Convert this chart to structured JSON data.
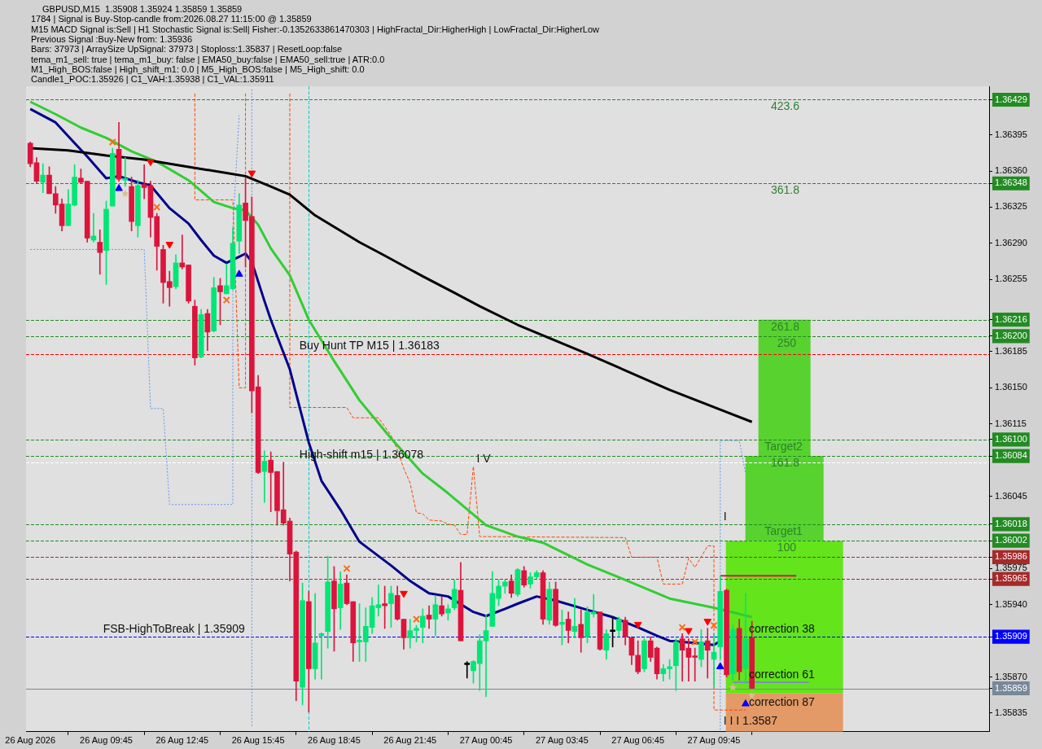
{
  "chart_data": {
    "type": "candlestick",
    "x": [
      "2026-08-26T06:45",
      "2026-08-26T07:00",
      "2026-08-26T07:15",
      "2026-08-26T07:30",
      "2026-08-26T07:45",
      "2026-08-26T08:00",
      "2026-08-26T08:15",
      "2026-08-26T08:30",
      "2026-08-26T08:45",
      "2026-08-26T09:00",
      "2026-08-26T09:15",
      "2026-08-26T09:30",
      "2026-08-26T09:45",
      "2026-08-26T10:00",
      "2026-08-26T10:15",
      "2026-08-26T10:30",
      "2026-08-26T10:45",
      "2026-08-26T11:00",
      "2026-08-26T11:15",
      "2026-08-26T11:30",
      "2026-08-26T11:45",
      "2026-08-26T12:00",
      "2026-08-26T12:15",
      "2026-08-26T12:30",
      "2026-08-26T12:45",
      "2026-08-26T13:00",
      "2026-08-26T13:15",
      "2026-08-26T13:30",
      "2026-08-26T13:45",
      "2026-08-26T14:00",
      "2026-08-26T14:15",
      "2026-08-26T14:30",
      "2026-08-26T14:45",
      "2026-08-26T15:00",
      "2026-08-26T15:15",
      "2026-08-26T15:30",
      "2026-08-26T15:45",
      "2026-08-26T16:00",
      "2026-08-26T16:15",
      "2026-08-26T16:30",
      "2026-08-26T16:45",
      "2026-08-26T17:00",
      "2026-08-26T17:15",
      "2026-08-26T17:30",
      "2026-08-26T17:45",
      "2026-08-26T18:00",
      "2026-08-26T18:15",
      "2026-08-26T18:30",
      "2026-08-26T18:45",
      "2026-08-26T19:00",
      "2026-08-26T19:15",
      "2026-08-26T19:30",
      "2026-08-26T19:45",
      "2026-08-26T20:00",
      "2026-08-26T20:15",
      "2026-08-26T20:30",
      "2026-08-26T20:45",
      "2026-08-26T21:00",
      "2026-08-26T21:15",
      "2026-08-26T21:30",
      "2026-08-26T21:45",
      "2026-08-26T22:00",
      "2026-08-26T22:15",
      "2026-08-26T22:30",
      "2026-08-26T22:45",
      "2026-08-26T23:00",
      "2026-08-26T23:15",
      "2026-08-26T23:30",
      "2026-08-26T23:45",
      "2026-08-27T00:00",
      "2026-08-27T00:15",
      "2026-08-27T00:30",
      "2026-08-27T00:45",
      "2026-08-27T01:00",
      "2026-08-27T01:15",
      "2026-08-27T01:30",
      "2026-08-27T01:45",
      "2026-08-27T02:00",
      "2026-08-27T02:15",
      "2026-08-27T02:30",
      "2026-08-27T02:45",
      "2026-08-27T03:00",
      "2026-08-27T03:15",
      "2026-08-27T03:30",
      "2026-08-27T03:45",
      "2026-08-27T04:00",
      "2026-08-27T04:15",
      "2026-08-27T04:30",
      "2026-08-27T04:45",
      "2026-08-27T05:00",
      "2026-08-27T05:15",
      "2026-08-27T05:30",
      "2026-08-27T05:45",
      "2026-08-27T06:00",
      "2026-08-27T06:15",
      "2026-08-27T06:30",
      "2026-08-27T06:45",
      "2026-08-27T07:00",
      "2026-08-27T07:15",
      "2026-08-27T07:30",
      "2026-08-27T07:45",
      "2026-08-27T08:00",
      "2026-08-27T08:15",
      "2026-08-27T08:30",
      "2026-08-27T08:45",
      "2026-08-27T09:00",
      "2026-08-27T09:15",
      "2026-08-27T09:30",
      "2026-08-27T09:45",
      "2026-08-27T10:00",
      "2026-08-27T10:15",
      "2026-08-27T10:30",
      "2026-08-27T10:45",
      "2026-08-27T11:00",
      "2026-08-27T11:15"
    ],
    "ohlc": [
      [
        1.36387,
        1.36388,
        1.36364,
        1.36367
      ],
      [
        1.36368,
        1.36373,
        1.36348,
        1.3635
      ],
      [
        1.36349,
        1.36367,
        1.36339,
        1.36356
      ],
      [
        1.36356,
        1.36364,
        1.36338,
        1.36338
      ],
      [
        1.36338,
        1.36345,
        1.36319,
        1.36327
      ],
      [
        1.36328,
        1.36333,
        1.36302,
        1.36307
      ],
      [
        1.36307,
        1.36342,
        1.36307,
        1.36328
      ],
      [
        1.36327,
        1.36366,
        1.36326,
        1.36354
      ],
      [
        1.36353,
        1.36362,
        1.36348,
        1.36349
      ],
      [
        1.3635,
        1.3635,
        1.36291,
        1.36295
      ],
      [
        1.36293,
        1.36319,
        1.36291,
        1.36297
      ],
      [
        1.36291,
        1.36303,
        1.3626,
        1.36281
      ],
      [
        1.36283,
        1.36331,
        1.3625,
        1.36323
      ],
      [
        1.36326,
        1.36382,
        1.36326,
        1.36377
      ],
      [
        1.36381,
        1.36407,
        1.3635,
        1.36352
      ],
      [
        1.36351,
        1.36373,
        1.36345,
        1.36352
      ],
      [
        1.36345,
        1.36354,
        1.36302,
        1.36311
      ],
      [
        1.36307,
        1.36351,
        1.36296,
        1.36346
      ],
      [
        1.36347,
        1.36366,
        1.36333,
        1.36344
      ],
      [
        1.36346,
        1.3635,
        1.36296,
        1.36315
      ],
      [
        1.36316,
        1.36319,
        1.36264,
        1.36287
      ],
      [
        1.36284,
        1.36288,
        1.36232,
        1.36252
      ],
      [
        1.36253,
        1.36263,
        1.36229,
        1.36247
      ],
      [
        1.36248,
        1.36279,
        1.36246,
        1.36271
      ],
      [
        1.36271,
        1.36298,
        1.36265,
        1.36267
      ],
      [
        1.36269,
        1.36269,
        1.36232,
        1.36234
      ],
      [
        1.36229,
        1.36235,
        1.36172,
        1.36179
      ],
      [
        1.3618,
        1.36226,
        1.36179,
        1.36221
      ],
      [
        1.36222,
        1.36226,
        1.36186,
        1.36204
      ],
      [
        1.36205,
        1.36257,
        1.36204,
        1.36247
      ],
      [
        1.36249,
        1.36256,
        1.36211,
        1.36243
      ],
      [
        1.36241,
        1.3627,
        1.36241,
        1.36249
      ],
      [
        1.36246,
        1.36305,
        1.36245,
        1.3629
      ],
      [
        1.36292,
        1.36338,
        1.3628,
        1.36327
      ],
      [
        1.36329,
        1.36354,
        1.36267,
        1.36312
      ],
      [
        1.36316,
        1.36335,
        1.36126,
        1.36147
      ],
      [
        1.36151,
        1.36162,
        1.36067,
        1.36068
      ],
      [
        1.36069,
        1.36089,
        1.36039,
        1.36079
      ],
      [
        1.3608,
        1.36088,
        1.3603,
        1.36068
      ],
      [
        1.36069,
        1.36069,
        1.36017,
        1.36031
      ],
      [
        1.36032,
        1.36078,
        1.36017,
        1.36019
      ],
      [
        1.36021,
        1.36024,
        1.35963,
        1.35989
      ],
      [
        1.35991,
        1.35992,
        1.35847,
        1.35866
      ],
      [
        1.3586,
        1.35961,
        1.35843,
        1.35944
      ],
      [
        1.35943,
        1.35953,
        1.35836,
        1.35878
      ],
      [
        1.35878,
        1.35951,
        1.35868,
        1.35903
      ],
      [
        1.3591,
        1.35913,
        1.35868,
        1.35912
      ],
      [
        1.35914,
        1.35987,
        1.35898,
        1.35962
      ],
      [
        1.35963,
        1.35977,
        1.35895,
        1.35936
      ],
      [
        1.35937,
        1.35972,
        1.35916,
        1.3596
      ],
      [
        1.35961,
        1.35969,
        1.3594,
        1.35941
      ],
      [
        1.35943,
        1.35943,
        1.35885,
        1.35903
      ],
      [
        1.35904,
        1.35941,
        1.35885,
        1.35905
      ],
      [
        1.35904,
        1.35937,
        1.35885,
        1.35919
      ],
      [
        1.35918,
        1.35947,
        1.35912,
        1.35939
      ],
      [
        1.35937,
        1.35959,
        1.35929,
        1.3594
      ],
      [
        1.35941,
        1.35958,
        1.35917,
        1.35939
      ],
      [
        1.35941,
        1.35958,
        1.35918,
        1.35951
      ],
      [
        1.35949,
        1.35958,
        1.35925,
        1.35926
      ],
      [
        1.35926,
        1.35926,
        1.35897,
        1.35908
      ],
      [
        1.35908,
        1.35926,
        1.35898,
        1.35915
      ],
      [
        1.35915,
        1.3592,
        1.35904,
        1.35917
      ],
      [
        1.35918,
        1.35936,
        1.35903,
        1.35929
      ],
      [
        1.3593,
        1.35939,
        1.35917,
        1.35926
      ],
      [
        1.35926,
        1.35949,
        1.3591,
        1.3594
      ],
      [
        1.35939,
        1.35948,
        1.35929,
        1.35931
      ],
      [
        1.35932,
        1.3594,
        1.35925,
        1.35936
      ],
      [
        1.35937,
        1.35964,
        1.35935,
        1.35955
      ],
      [
        1.35954,
        1.35981,
        1.35905,
        1.35905
      ],
      [
        1.35882,
        1.35885,
        1.35869,
        1.35882
      ],
      [
        1.35876,
        1.35886,
        1.35864,
        1.35885
      ],
      [
        1.35883,
        1.35911,
        1.35857,
        1.35905
      ],
      [
        1.35905,
        1.3593,
        1.35851,
        1.35915
      ],
      [
        1.35919,
        1.35972,
        1.35919,
        1.35951
      ],
      [
        1.35946,
        1.35964,
        1.35939,
        1.35958
      ],
      [
        1.35958,
        1.35964,
        1.35951,
        1.35962
      ],
      [
        1.35963,
        1.35969,
        1.35947,
        1.35951
      ],
      [
        1.3595,
        1.35975,
        1.35948,
        1.35974
      ],
      [
        1.35973,
        1.35977,
        1.35957,
        1.35959
      ],
      [
        1.3596,
        1.35971,
        1.35956,
        1.35967
      ],
      [
        1.35967,
        1.35973,
        1.35965,
        1.35971
      ],
      [
        1.35971,
        1.35973,
        1.35921,
        1.35926
      ],
      [
        1.35925,
        1.35962,
        1.35921,
        1.35955
      ],
      [
        1.35955,
        1.35962,
        1.35919,
        1.3592
      ],
      [
        1.35921,
        1.35935,
        1.35901,
        1.35923
      ],
      [
        1.35926,
        1.35933,
        1.35903,
        1.35915
      ],
      [
        1.35914,
        1.35946,
        1.35908,
        1.35919
      ],
      [
        1.35921,
        1.35935,
        1.35894,
        1.35908
      ],
      [
        1.35909,
        1.35938,
        1.35903,
        1.35933
      ],
      [
        1.35931,
        1.3595,
        1.35928,
        1.35933
      ],
      [
        1.35933,
        1.35933,
        1.35896,
        1.35897
      ],
      [
        1.35896,
        1.35916,
        1.35887,
        1.35912
      ],
      [
        1.35914,
        1.35928,
        1.35899,
        1.35914
      ],
      [
        1.35915,
        1.35928,
        1.35909,
        1.35926
      ],
      [
        1.35925,
        1.35928,
        1.35901,
        1.35909
      ],
      [
        1.35908,
        1.35909,
        1.35882,
        1.35891
      ],
      [
        1.35891,
        1.35905,
        1.35873,
        1.35875
      ],
      [
        1.35878,
        1.35907,
        1.35875,
        1.35905
      ],
      [
        1.35905,
        1.35909,
        1.35885,
        1.35889
      ],
      [
        1.35898,
        1.35899,
        1.35868,
        1.35873
      ],
      [
        1.35873,
        1.35882,
        1.35866,
        1.35878
      ],
      [
        1.35878,
        1.35887,
        1.35868,
        1.3588
      ],
      [
        1.35881,
        1.35907,
        1.35857,
        1.35904
      ],
      [
        1.35907,
        1.35912,
        1.35866,
        1.35896
      ],
      [
        1.35898,
        1.35907,
        1.35866,
        1.35889
      ],
      [
        1.3589,
        1.35898,
        1.35866,
        1.35889
      ],
      [
        1.35887,
        1.35916,
        1.3588,
        1.35904
      ],
      [
        1.35905,
        1.35917,
        1.35869,
        1.35896
      ],
      [
        1.35887,
        1.35912,
        1.3586,
        1.35894
      ],
      [
        1.35899,
        1.35968,
        1.35887,
        1.35953
      ],
      [
        1.35954,
        1.35955,
        1.3587,
        1.35872
      ],
      [
        1.35873,
        1.3592,
        1.35867,
        1.35916
      ],
      [
        1.35917,
        1.35926,
        1.35867,
        1.35875
      ],
      [
        1.35878,
        1.35951,
        1.35864,
        1.35907
      ],
      [
        1.35908,
        1.35924,
        1.35859,
        1.35859
      ]
    ],
    "colors": [
      "#dc143c",
      "#dc143c",
      "#00e676",
      "#dc143c",
      "#dc143c",
      "#dc143c",
      "#00e676",
      "#00e676",
      "#dc143c",
      "#dc143c",
      "#00e676",
      "#dc143c",
      "#00e676",
      "#00e676",
      "#dc143c",
      "#00e676",
      "#dc143c",
      "#00e676",
      "#dc143c",
      "#dc143c",
      "#dc143c",
      "#dc143c",
      "#dc143c",
      "#00e676",
      "#dc143c",
      "#dc143c",
      "#dc143c",
      "#00e676",
      "#dc143c",
      "#00e676",
      "#dc143c",
      "#00e676",
      "#00e676",
      "#00e676",
      "#dc143c",
      "#dc143c",
      "#dc143c",
      "#00e676",
      "#dc143c",
      "#dc143c",
      "#dc143c",
      "#dc143c",
      "#dc143c",
      "#00e676",
      "#dc143c",
      "#00e676",
      "#00e676",
      "#00e676",
      "#dc143c",
      "#00e676",
      "#dc143c",
      "#dc143c",
      "#00e676",
      "#00e676",
      "#00e676",
      "#00e676",
      "#dc143c",
      "#00e676",
      "#dc143c",
      "#dc143c",
      "#00e676",
      "#00e676",
      "#00e676",
      "#dc143c",
      "#00e676",
      "#dc143c",
      "#00e676",
      "#00e676",
      "#dc143c",
      "#000000",
      "#00e676",
      "#00e676",
      "#00e676",
      "#00e676",
      "#00e676",
      "#00e676",
      "#dc143c",
      "#00e676",
      "#dc143c",
      "#00e676",
      "#00e676",
      "#dc143c",
      "#00e676",
      "#dc143c",
      "#00e676",
      "#dc143c",
      "#00e676",
      "#dc143c",
      "#00e676",
      "#00e676",
      "#dc143c",
      "#00e676",
      "#000000",
      "#00e676",
      "#dc143c",
      "#dc143c",
      "#dc143c",
      "#00e676",
      "#dc143c",
      "#dc143c",
      "#00e676",
      "#00e676",
      "#00e676",
      "#dc143c",
      "#dc143c",
      "#dc143c",
      "#00e676",
      "#dc143c",
      "#00e676",
      "#00e676",
      "#dc143c",
      "#00e676",
      "#dc143c",
      "#00e676",
      "#dc143c"
    ],
    "xlim": [
      "2026-08-26T06:35",
      "2026-08-27T20:37"
    ],
    "ylim": [
      1.35817,
      1.36442
    ],
    "xticks": [
      {
        "value": "2026-08-26T06:45",
        "label": "26 Aug 2026"
      },
      {
        "value": "2026-08-26T09:45",
        "label": "26 Aug 09:45"
      },
      {
        "value": "2026-08-26T12:45",
        "label": "26 Aug 12:45"
      },
      {
        "value": "2026-08-26T15:45",
        "label": "26 Aug 15:45"
      },
      {
        "value": "2026-08-26T18:45",
        "label": "26 Aug 18:45"
      },
      {
        "value": "2026-08-26T21:45",
        "label": "26 Aug 21:45"
      },
      {
        "value": "2026-08-27T00:45",
        "label": "27 Aug 00:45"
      },
      {
        "value": "2026-08-27T03:45",
        "label": "27 Aug 03:45"
      },
      {
        "value": "2026-08-27T06:45",
        "label": "27 Aug 06:45"
      },
      {
        "value": "2026-08-27T09:45",
        "label": "27 Aug 09:45"
      }
    ],
    "yticks": [
      1.36429,
      1.36395,
      {
        "value": 1.3636,
        "label": "1.36360"
      },
      1.36348,
      1.36325,
      {
        "value": 1.3629,
        "label": "1.36290"
      },
      1.36255,
      1.36216,
      {
        "value": 1.362,
        "label": "1.36200"
      },
      1.36185,
      {
        "value": 1.3615,
        "label": "1.36150"
      },
      1.36115,
      {
        "value": 1.361,
        "label": "1.36100"
      },
      1.36084,
      1.36045,
      1.36018,
      1.36002,
      1.35986,
      1.35975,
      1.35965,
      {
        "value": 1.3594,
        "label": "1.35940"
      },
      1.35909,
      {
        "value": 1.3587,
        "label": "1.35870"
      },
      1.35859,
      1.35835
    ],
    "ref_lines": [
      {
        "axis": "y",
        "value": 1.36429,
        "color": "#228b22",
        "line_style": "dashed"
      },
      {
        "axis": "y",
        "value": 1.36348,
        "color": "#228b22",
        "line_style": "dashed"
      },
      {
        "axis": "y",
        "value": 1.36216,
        "color": "#228b22",
        "line_style": "dashed"
      },
      {
        "axis": "y",
        "value": 1.362,
        "color": "#228b22",
        "line_style": "dashed"
      },
      {
        "axis": "y",
        "value": 1.36183,
        "color": "#ff0000",
        "line_style": "dashed"
      },
      {
        "axis": "y",
        "value": 1.361,
        "color": "#228b22",
        "line_style": "dashed"
      },
      {
        "axis": "y",
        "value": 1.36084,
        "color": "#228b22",
        "line_style": "dashed"
      },
      {
        "axis": "y",
        "value": 1.36078,
        "color": "#ffffff",
        "line_style": "dashed"
      },
      {
        "axis": "y",
        "value": 1.36018,
        "color": "#228b22",
        "line_style": "dashed"
      },
      {
        "axis": "y",
        "value": 1.36002,
        "color": "#228b22",
        "line_style": "dashed"
      },
      {
        "axis": "y",
        "value": 1.35986,
        "color": "#a52a2a",
        "line_style": "dashed"
      },
      {
        "axis": "y",
        "value": 1.35965,
        "color": "#a52a2a",
        "line_style": "dashed"
      },
      {
        "axis": "y",
        "value": 1.35909,
        "color": "#0000ff",
        "line_style": "dashed"
      },
      {
        "axis": "y",
        "value": 1.35859,
        "color": "#778899",
        "line_style": "solid"
      },
      {
        "axis": "x",
        "value": "2026-08-26T17:45",
        "color": "#00ced1",
        "line_style": "dashed"
      }
    ],
    "bands": [
      {
        "axis": "y",
        "from": 1.36084,
        "to": 1.36216,
        "color": "#57d22e"
      },
      {
        "axis": "y",
        "from": 1.36002,
        "to": 1.36084,
        "color": "#57d22e"
      },
      {
        "axis": "y",
        "from": 1.35854,
        "to": 1.36002,
        "color": "#63e41b"
      },
      {
        "axis": "y",
        "from": 1.35817,
        "to": 1.35854,
        "color": "#e39a67"
      }
    ],
    "series": [
      {
        "type": "line",
        "color": "#000000",
        "x": [
          "2026-08-26T06:45",
          "2026-08-26T08:15",
          "2026-08-26T09:45",
          "2026-08-26T11:15",
          "2026-08-26T13:00",
          "2026-08-26T14:30",
          "2026-08-26T15:15",
          "2026-08-26T16:15",
          "2026-08-26T17:00",
          "2026-08-26T18:00",
          "2026-08-26T19:45",
          "2026-08-26T20:45",
          "2026-08-26T22:15",
          "2026-08-26T23:30",
          "2026-08-27T00:30",
          "2026-08-27T02:00",
          "2026-08-27T04:45",
          "2026-08-27T08:00",
          "2026-08-27T11:15"
        ],
        "values": [
          1.36382,
          1.3638,
          1.36375,
          1.36371,
          1.36364,
          1.36358,
          1.36355,
          1.36345,
          1.36337,
          1.36317,
          1.36291,
          1.36278,
          1.36258,
          1.36242,
          1.36229,
          1.36211,
          1.36183,
          1.36148,
          1.36117
        ]
      },
      {
        "type": "line",
        "color": "#32cd32",
        "x": [
          "2026-08-26T06:45",
          "2026-08-26T07:45",
          "2026-08-26T08:45",
          "2026-08-26T09:45",
          "2026-08-26T10:45",
          "2026-08-26T11:45",
          "2026-08-26T13:00",
          "2026-08-26T14:00",
          "2026-08-26T14:45",
          "2026-08-26T15:15",
          "2026-08-26T15:45",
          "2026-08-26T16:15",
          "2026-08-26T17:00",
          "2026-08-26T17:45",
          "2026-08-26T18:45",
          "2026-08-26T19:45",
          "2026-08-26T21:00",
          "2026-08-26T22:15",
          "2026-08-26T23:15",
          "2026-08-27T00:45",
          "2026-08-27T02:00",
          "2026-08-27T03:00",
          "2026-08-27T04:45",
          "2026-08-27T06:15",
          "2026-08-27T08:00",
          "2026-08-27T09:45",
          "2026-08-27T11:15"
        ],
        "values": [
          1.36427,
          1.36415,
          1.36402,
          1.36392,
          1.36379,
          1.36369,
          1.36351,
          1.3633,
          1.36324,
          1.36322,
          1.36308,
          1.36285,
          1.36259,
          1.36216,
          1.36176,
          1.36138,
          1.36101,
          1.36067,
          1.36048,
          1.36017,
          1.36006,
          1.36,
          1.35979,
          1.35964,
          1.35946,
          1.35937,
          1.35928
        ]
      },
      {
        "type": "line",
        "color": "#00008b",
        "x": [
          "2026-08-26T06:45",
          "2026-08-26T07:45",
          "2026-08-26T08:30",
          "2026-08-26T09:00",
          "2026-08-26T09:45",
          "2026-08-26T10:15",
          "2026-08-26T11:00",
          "2026-08-26T11:30",
          "2026-08-26T12:15",
          "2026-08-26T13:00",
          "2026-08-26T13:30",
          "2026-08-26T14:00",
          "2026-08-26T14:30",
          "2026-08-26T15:00",
          "2026-08-26T15:15",
          "2026-08-26T15:30",
          "2026-08-26T16:00",
          "2026-08-26T16:15",
          "2026-08-26T17:00",
          "2026-08-26T17:45",
          "2026-08-26T18:15",
          "2026-08-26T19:00",
          "2026-08-26T19:45",
          "2026-08-26T21:00",
          "2026-08-26T21:45",
          "2026-08-26T22:30",
          "2026-08-26T23:15",
          "2026-08-27T00:15",
          "2026-08-27T00:45",
          "2026-08-27T01:30",
          "2026-08-27T02:00",
          "2026-08-27T02:45",
          "2026-08-27T03:30",
          "2026-08-27T04:45",
          "2026-08-27T05:45",
          "2026-08-27T06:45",
          "2026-08-27T07:30",
          "2026-08-27T08:00",
          "2026-08-27T09:00",
          "2026-08-27T09:45",
          "2026-08-27T10:00"
        ],
        "values": [
          1.3642,
          1.36407,
          1.36387,
          1.36374,
          1.36353,
          1.36355,
          1.36349,
          1.36346,
          1.36324,
          1.36309,
          1.36293,
          1.36278,
          1.36271,
          1.36277,
          1.3628,
          1.36272,
          1.36234,
          1.36216,
          1.36168,
          1.36097,
          1.3606,
          1.36032,
          1.36001,
          1.35978,
          1.35963,
          1.35951,
          1.35948,
          1.35933,
          1.35929,
          1.35936,
          1.35941,
          1.35948,
          1.35944,
          1.35935,
          1.35928,
          1.35918,
          1.3591,
          1.35905,
          1.35903,
          1.35901,
          1.35905
        ]
      },
      {
        "type": "line",
        "color": "#ff4500",
        "line_style": "dashed",
        "x": [
          "2026-08-26T13:15",
          "2026-08-26T13:15",
          "2026-08-26T14:45",
          "2026-08-26T15:00",
          "2026-08-26T15:15",
          "2026-08-26T15:15"
        ],
        "values": [
          1.36435,
          1.36332,
          1.36332,
          1.3615,
          1.3615,
          1.36435
        ]
      },
      {
        "type": "line",
        "color": "#ff4500",
        "line_style": "dashed",
        "x": [
          "2026-08-26T17:00",
          "2026-08-26T17:00",
          "2026-08-26T19:15",
          "2026-08-26T19:30",
          "2026-08-26T20:30",
          "2026-08-26T21:00",
          "2026-08-26T21:15",
          "2026-08-26T21:30",
          "2026-08-26T21:45",
          "2026-08-26T22:00",
          "2026-08-26T22:15",
          "2026-08-26T22:30",
          "2026-08-26T23:00",
          "2026-08-26T23:15",
          "2026-08-26T23:30",
          "2026-08-26T23:45",
          "2026-08-27T00:00",
          "2026-08-27T00:15",
          "2026-08-27T00:30",
          "2026-08-27T06:15",
          "2026-08-27T06:30",
          "2026-08-27T07:30",
          "2026-08-27T07:45",
          "2026-08-27T08:30",
          "2026-08-27T08:45",
          "2026-08-27T09:00",
          "2026-08-27T09:30",
          "2026-08-27T09:45",
          "2026-08-27T09:45",
          "2026-08-27T11:00"
        ],
        "values": [
          1.36435,
          1.36131,
          1.36131,
          1.36121,
          1.36121,
          1.36104,
          1.3609,
          1.36072,
          1.36058,
          1.36029,
          1.36028,
          1.36022,
          1.36021,
          1.36018,
          1.36017,
          1.36008,
          1.36008,
          1.36074,
          1.36006,
          1.36005,
          1.35986,
          1.35986,
          1.3596,
          1.3596,
          1.35985,
          1.35976,
          1.35997,
          1.35997,
          1.35838,
          1.35838
        ]
      },
      {
        "type": "line",
        "color": "#6495ed",
        "line_style": "dotted",
        "x": [
          "2026-08-26T06:45",
          "2026-08-26T11:15",
          "2026-08-26T11:30",
          "2026-08-26T12:00",
          "2026-08-26T12:15",
          "2026-08-26T14:45",
          "2026-08-26T14:45",
          "2026-08-26T15:00"
        ],
        "values": [
          1.36284,
          1.36284,
          1.3613,
          1.3613,
          1.36037,
          1.36037,
          1.36305,
          1.36414
        ]
      },
      {
        "type": "line",
        "color": "#6495ed",
        "line_style": "dotted",
        "x": [
          "2026-08-26T15:30",
          "2026-08-26T15:30"
        ],
        "values": [
          1.36439,
          1.35822
        ]
      },
      {
        "type": "line",
        "color": "#6495ed",
        "line_style": "dotted",
        "x": [
          "2026-08-27T10:00",
          "2026-08-27T10:00",
          "2026-08-27T10:45",
          "2026-08-27T11:00"
        ],
        "values": [
          1.35819,
          1.36099,
          1.36099,
          1.36067
        ]
      },
      {
        "type": "line",
        "color": "#dc143c",
        "x": [
          "2026-08-27T10:00",
          "2026-08-27T13:00"
        ],
        "values": [
          1.35968,
          1.35968
        ]
      },
      {
        "type": "line",
        "color": "#7b8fc7",
        "x": [
          "2026-08-27T10:30",
          "2026-08-27T13:30"
        ],
        "values": [
          1.35865,
          1.35865
        ]
      },
      {
        "type": "scatter",
        "color": "#ff0000",
        "marker": "triangle",
        "x": [
          "2026-08-26T11:30",
          "2026-08-26T12:15",
          "2026-08-26T15:30",
          "2026-08-26T21:30",
          "2026-08-27T06:45",
          "2026-08-27T08:45",
          "2026-08-27T09:30"
        ],
        "values": [
          1.36369,
          1.36289,
          1.36358,
          1.35951,
          1.35921,
          1.35915,
          1.35924
        ]
      },
      {
        "type": "scatter",
        "color": "#0000ff",
        "marker": "triangle",
        "x": [
          "2026-08-26T10:15",
          "2026-08-26T15:00",
          "2026-08-27T10:00",
          "2026-08-27T11:00"
        ],
        "values": [
          1.36343,
          1.3626,
          1.3588,
          1.35844
        ]
      },
      {
        "type": "scatter",
        "color": "#ff6a13",
        "marker": "cross",
        "x": [
          "2026-08-26T10:00",
          "2026-08-26T11:45",
          "2026-08-26T14:30",
          "2026-08-26T19:15",
          "2026-08-26T22:00",
          "2026-08-27T08:30",
          "2026-08-27T09:00",
          "2026-08-27T09:45"
        ],
        "values": [
          1.36388,
          1.36325,
          1.36235,
          1.35975,
          1.35926,
          1.35918,
          1.35904,
          1.3592
        ]
      },
      {
        "type": "scatter",
        "color": "#d9bf8c",
        "marker": "star",
        "x": [
          "2026-08-26T10:30",
          "2026-08-27T10:30",
          "2026-08-27T11:15"
        ],
        "values": [
          1.36338,
          1.3586,
          1.35852
        ]
      }
    ],
    "annotations": [
      "GBPUSD,M15  1.35908 1.35924 1.35859 1.35859",
      "1784 | Signal is Buy-Stop-candle from:2026.08.27 11:15:00 @ 1.35859",
      "M15 MACD Signal is:Sell | H1 Stochastic Signal is:Sell| Fisher:-0.1352633861470303 | HighFractal_Dir:HigherHigh | LowFractal_Dir:HigherLow",
      "Previous Signal :Buy-New from: 1.35936",
      "Bars: 37973 | ArraySize UpSignal: 37973 | Stoploss:1.35837 | ResetLoop:false",
      "tema_m1_sell: true | tema_m1_buy: false | EMA50_buy:false | EMA50_sell:true | ATR:0.0",
      "M1_High_BOS:false | High_shift_m1: 0.0 | M5_High_BOS:false | M5_High_shift: 0.0",
      "Candle1_POC:1.35926 | C1_VAH:1.35938 | C1_VAL:1.35911",
      {
        "text": "423.6",
        "x": "2026-08-27T12:00",
        "y": 1.36429
      },
      {
        "text": "361.8",
        "x": "2026-08-27T12:00",
        "y": 1.36348
      },
      {
        "text": "261.8",
        "x": "2026-08-27T12:00",
        "y": 1.36216
      },
      {
        "text": "250",
        "x": "2026-08-27T12:15",
        "y": 1.362
      },
      {
        "text": "Buy Hunt TP M15 | 1.36183",
        "x": "2026-08-26T17:15",
        "y": 1.36183
      },
      {
        "text": "Target2",
        "x": "2026-08-27T11:45",
        "y": 1.361
      },
      {
        "text": "161.8",
        "x": "2026-08-27T12:00",
        "y": 1.36084
      },
      {
        "text": "High-shift m15 | 1.36078",
        "x": "2026-08-26T17:15",
        "y": 1.36078
      },
      {
        "text": "I V",
        "x": "2026-08-27T00:15",
        "y": 1.36074
      },
      {
        "text": "Target1",
        "x": "2026-08-27T11:45",
        "y": 1.36018
      },
      {
        "text": "I",
        "x": "2026-08-27T10:00",
        "y": 1.36018
      },
      {
        "text": "100",
        "x": "2026-08-27T12:15",
        "y": 1.36002
      },
      {
        "text": "FSB-HighToBreak | 1.35909",
        "x": "2026-08-26T09:30",
        "y": 1.35909
      },
      {
        "text": "correction 38",
        "x": "2026-08-27T11:00",
        "y": 1.35909
      },
      {
        "text": "correction 61",
        "x": "2026-08-27T11:00",
        "y": 1.35865
      },
      {
        "text": "correction 87",
        "x": "2026-08-27T11:00",
        "y": 1.35838
      },
      {
        "text": "I I I 1.3587",
        "x": "2026-08-27T10:00",
        "y": 1.3582
      }
    ]
  }
}
